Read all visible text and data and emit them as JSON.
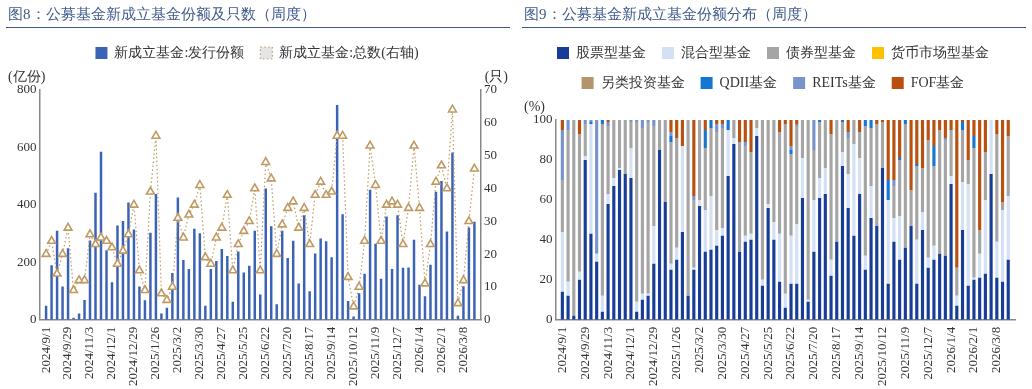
{
  "chart_data": [
    {
      "type": "bar",
      "title": "图8：公募基金新成立基金份额及只数（周度）",
      "ylabel": "(亿份)",
      "y2label": "(只)",
      "legend": "top",
      "grid": false,
      "marker": "triangle",
      "line_style": "dotted",
      "categories": [
        "2024/9/1",
        null,
        null,
        null,
        "2024/9/29",
        null,
        null,
        null,
        "2024/11/3",
        null,
        null,
        null,
        "2024/12/1",
        null,
        null,
        null,
        "2024/12/29",
        null,
        null,
        null,
        "2025/1/26",
        null,
        null,
        null,
        "2025/3/2",
        null,
        null,
        null,
        "2025/3/30",
        null,
        null,
        null,
        "2025/4/27",
        null,
        null,
        null,
        "2025/5/25",
        null,
        null,
        null,
        "2025/6/22",
        null,
        null,
        null,
        "2025/7/20",
        null,
        null,
        null,
        "2025/8/17",
        null,
        null,
        null,
        "2025/9/14",
        null,
        null,
        null,
        "2025/10/12",
        null,
        null,
        null,
        "2025/11/9",
        null,
        null,
        null,
        "2025/12/7",
        null,
        null,
        null,
        "2026/1/4",
        null,
        null,
        null,
        "2026/2/1",
        null,
        null,
        null,
        "2026/3/8",
        null,
        null
      ],
      "ylim": [
        0,
        800
      ],
      "yticks": [
        0,
        200,
        400,
        600,
        800
      ],
      "y2lim": [
        0,
        70
      ],
      "y2ticks": [
        0,
        10,
        20,
        30,
        40,
        50,
        60,
        70
      ],
      "series": [
        {
          "name": "新成立基金:发行份额",
          "color": "#3a62b5",
          "values": [
            49,
            190,
            310,
            116,
            249,
            7,
            22,
            69,
            276,
            442,
            585,
            242,
            131,
            328,
            344,
            408,
            314,
            116,
            68,
            303,
            438,
            22,
            42,
            163,
            426,
            208,
            177,
            317,
            301,
            49,
            177,
            205,
            246,
            222,
            63,
            238,
            165,
            188,
            310,
            88,
            457,
            326,
            54,
            310,
            215,
            275,
            126,
            364,
            99,
            231,
            283,
            273,
            218,
            748,
            367,
            65,
            11,
            92,
            160,
            453,
            265,
            143,
            360,
            177,
            364,
            181,
            182,
            279,
            122,
            82,
            192,
            446,
            483,
            307,
            582,
            14,
            117,
            321,
            341
          ]
        },
        {
          "name": "新成立基金:总数(右轴)",
          "type": "line",
          "axis": "y2",
          "color": "#c09a63",
          "values": [
            20,
            24,
            14,
            20,
            28,
            9,
            12,
            12,
            26,
            23,
            25,
            24,
            22,
            17,
            21,
            26,
            35,
            15,
            9,
            39,
            56,
            8,
            6,
            10,
            31,
            25,
            32,
            35,
            41,
            19,
            17,
            25,
            28,
            38,
            15,
            23,
            27,
            30,
            40,
            15,
            48,
            43,
            20,
            29,
            34,
            36,
            28,
            34,
            23,
            38,
            42,
            38,
            39,
            56,
            56,
            13,
            4,
            10,
            24,
            53,
            41,
            24,
            35,
            36,
            35,
            23,
            34,
            53,
            34,
            11,
            23,
            42,
            47,
            40,
            64,
            5,
            12,
            30,
            46
          ]
        }
      ]
    },
    {
      "type": "bar",
      "stacked": true,
      "title": "图9：公募基金新成立基金份额分布（周度）",
      "ylabel": "(%)",
      "legend": "top",
      "grid": false,
      "categories": [
        "2024/9/1",
        null,
        null,
        null,
        "2024/9/29",
        null,
        null,
        null,
        "2024/11/3",
        null,
        null,
        null,
        "2024/12/1",
        null,
        null,
        null,
        "2024/12/29",
        null,
        null,
        null,
        "2025/1/26",
        null,
        null,
        null,
        "2025/3/2",
        null,
        null,
        null,
        "2025/3/30",
        null,
        null,
        null,
        "2025/4/27",
        null,
        null,
        null,
        "2025/5/25",
        null,
        null,
        null,
        "2025/6/22",
        null,
        null,
        null,
        "2025/7/20",
        null,
        null,
        null,
        "2025/8/17",
        null,
        null,
        null,
        "2025/9/14",
        null,
        null,
        null,
        "2025/10/12",
        null,
        null,
        null,
        "2025/11/9",
        null,
        null,
        null,
        "2025/12/7",
        null,
        null,
        null,
        "2026/1/4",
        null,
        null,
        null,
        "2026/2/1",
        null,
        null,
        null,
        "2026/3/8",
        null,
        null
      ],
      "ylim": [
        0,
        100
      ],
      "yticks": [
        0,
        20,
        40,
        60,
        80,
        100
      ],
      "series": [
        {
          "name": "股票型基金",
          "color": "#173d96",
          "values": [
            14,
            12,
            2,
            20,
            80,
            43,
            29,
            4,
            58,
            67,
            75,
            73,
            71,
            4,
            10,
            12,
            28,
            85,
            59,
            25,
            30,
            44,
            12,
            25,
            57,
            34,
            35,
            37,
            42,
            72,
            88,
            34,
            39,
            40,
            92,
            17,
            56,
            40,
            19,
            6,
            18,
            18,
            61,
            9,
            34,
            61,
            63,
            22,
            39,
            77,
            56,
            42,
            63,
            25,
            51,
            47,
            76,
            18,
            39,
            30,
            36,
            47,
            18,
            45,
            26,
            30,
            33,
            32,
            68,
            7,
            45,
            17,
            20,
            21,
            23,
            73,
            21,
            19,
            30
          ]
        },
        {
          "name": "混合型基金",
          "color": "#d4e0f4",
          "values": [
            30,
            7,
            0,
            4,
            2,
            55,
            4,
            8,
            5,
            4,
            1,
            0,
            15,
            5,
            3,
            1,
            19,
            0,
            0,
            3,
            6,
            43,
            0,
            1,
            3,
            21,
            27,
            8,
            4,
            23,
            3,
            0,
            3,
            3,
            4,
            3,
            2,
            9,
            24,
            7,
            24,
            30,
            20,
            1,
            26,
            10,
            13,
            8,
            0,
            7,
            17,
            46,
            18,
            7,
            16,
            0,
            0,
            42,
            12,
            22,
            0,
            0,
            22,
            9,
            5,
            7,
            0,
            0,
            4,
            5,
            24,
            51,
            1,
            12,
            37,
            27,
            18,
            36,
            32
          ]
        },
        {
          "name": "债券型基金",
          "color": "#a5a5a5",
          "values": [
            26,
            76,
            98,
            69,
            16,
            0,
            0,
            86,
            34,
            29,
            24,
            27,
            13,
            90,
            83,
            86,
            50,
            15,
            41,
            61,
            55,
            0,
            88,
            34,
            40,
            31,
            34,
            49,
            50,
            0,
            9,
            55,
            45,
            41,
            4,
            80,
            42,
            51,
            51,
            85,
            41,
            49,
            19,
            90,
            25,
            28,
            24,
            63,
            61,
            15,
            18,
            12,
            13,
            65,
            29,
            51,
            23,
            0,
            16,
            28,
            62,
            18,
            37,
            22,
            59,
            40,
            62,
            58,
            23,
            14,
            26,
            12,
            65,
            12,
            24,
            0,
            54,
            4,
            30
          ]
        },
        {
          "name": "货币市场型基金",
          "color": "#ffc000",
          "values": [
            0,
            0,
            0,
            0,
            0,
            0,
            0,
            0,
            0,
            0,
            0,
            0,
            0,
            0,
            0,
            0,
            0,
            0,
            0,
            0,
            0,
            0,
            0,
            0,
            0,
            0,
            0,
            0,
            0,
            0,
            0,
            0,
            0,
            0,
            0,
            0,
            0,
            0,
            0,
            0,
            0,
            0,
            0,
            0,
            0,
            0,
            0,
            0,
            0,
            0,
            0,
            0,
            0,
            0,
            0,
            0,
            0,
            0,
            0,
            0,
            0,
            0,
            0,
            0,
            0,
            0,
            0,
            0,
            0,
            0,
            0,
            0,
            0,
            0,
            0,
            0,
            0,
            0,
            0
          ]
        },
        {
          "name": "另类投资基金",
          "color": "#b4956b",
          "values": [
            0,
            0,
            0,
            0,
            0,
            0,
            0,
            0,
            0,
            0,
            0,
            0,
            0,
            0,
            0,
            0,
            0,
            0,
            0,
            0,
            0,
            0,
            0,
            0,
            0,
            0,
            0,
            0,
            0,
            0,
            0,
            0,
            0,
            0,
            0,
            0,
            0,
            0,
            0,
            0,
            0,
            0,
            0,
            0,
            0,
            0,
            0,
            0,
            0,
            0,
            0,
            0,
            0,
            0,
            0,
            0,
            0,
            0,
            0,
            0,
            0,
            0,
            0,
            0,
            0,
            0,
            0,
            0,
            0,
            0,
            0,
            0,
            0,
            0,
            0,
            0,
            0,
            0,
            0
          ]
        },
        {
          "name": "QDII基金",
          "color": "#1677d2",
          "values": [
            0,
            0,
            0,
            0,
            0,
            1,
            0,
            2,
            0,
            0,
            0,
            0,
            0,
            0,
            0,
            0,
            0,
            0,
            0,
            3,
            0,
            0,
            0,
            0,
            0,
            9,
            4,
            0,
            0,
            5,
            0,
            0,
            0,
            0,
            0,
            0,
            0,
            0,
            0,
            0,
            2,
            0,
            0,
            0,
            0,
            1,
            0,
            0,
            0,
            1,
            0,
            0,
            0,
            3,
            4,
            0,
            0,
            10,
            0,
            1,
            2,
            0,
            1,
            0,
            0,
            10,
            0,
            0,
            0,
            0,
            4,
            0,
            6,
            0,
            0,
            0,
            0,
            0,
            0
          ]
        },
        {
          "name": "REITs基金",
          "color": "#7894cc",
          "values": [
            25,
            5,
            0,
            0,
            2,
            1,
            67,
            0,
            2,
            0,
            0,
            0,
            1,
            1,
            4,
            1,
            3,
            0,
            0,
            2,
            0,
            0,
            0,
            2,
            0,
            0,
            0,
            4,
            2,
            0,
            0,
            0,
            2,
            0,
            0,
            0,
            0,
            0,
            0,
            0,
            2,
            1,
            0,
            0,
            15,
            0,
            0,
            0,
            0,
            0,
            3,
            0,
            0,
            0,
            0,
            0,
            0,
            0,
            3,
            0,
            0,
            0,
            0,
            0,
            0,
            0,
            0,
            1,
            0,
            0,
            0,
            0,
            0,
            0,
            0,
            0,
            0,
            0,
            0
          ]
        },
        {
          "name": "FOF基金",
          "color": "#b8500f",
          "values": [
            5,
            0,
            0,
            7,
            0,
            0,
            0,
            0,
            1,
            0,
            0,
            0,
            0,
            0,
            0,
            0,
            0,
            0,
            0,
            6,
            9,
            13,
            0,
            38,
            0,
            5,
            0,
            2,
            2,
            0,
            0,
            11,
            11,
            16,
            0,
            0,
            0,
            0,
            6,
            2,
            13,
            2,
            0,
            0,
            0,
            0,
            0,
            7,
            0,
            0,
            6,
            0,
            6,
            0,
            0,
            2,
            1,
            30,
            30,
            19,
            0,
            35,
            22,
            24,
            10,
            13,
            5,
            9,
            5,
            74,
            1,
            20,
            8,
            55,
            16,
            0,
            7,
            41,
            8
          ]
        }
      ]
    }
  ]
}
